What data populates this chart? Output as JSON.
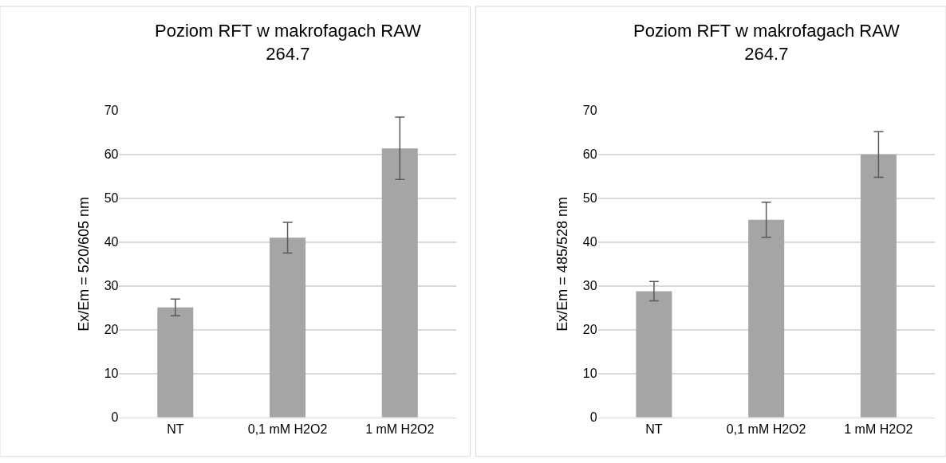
{
  "chart_data": [
    {
      "type": "bar",
      "title": "Poziom RFT w makrofagach RAW 264.7",
      "ylabel": "Ex/Em = 520/605 nm",
      "categories": [
        "NT",
        "0,1 mM H2O2",
        "1 mM H2O2"
      ],
      "values": [
        25.1,
        41.0,
        61.4
      ],
      "errors": [
        1.9,
        3.5,
        7.1
      ],
      "color": "#a5a5a5",
      "ylim": [
        0,
        70
      ],
      "yticks": [
        0,
        10,
        20,
        30,
        40,
        50,
        60,
        70
      ],
      "grid": "y"
    },
    {
      "type": "bar",
      "title": "Poziom RFT w makrofagach RAW 264.7",
      "ylabel": "Ex/Em = 485/528 nm",
      "categories": [
        "NT",
        "0,1 mM H2O2",
        "1 mM H2O2"
      ],
      "values": [
        28.8,
        45.1,
        60.0
      ],
      "errors": [
        2.2,
        4.0,
        5.2
      ],
      "color": "#a5a5a5",
      "ylim": [
        0,
        70
      ],
      "yticks": [
        0,
        10,
        20,
        30,
        40,
        50,
        60,
        70
      ],
      "grid": "y"
    }
  ]
}
